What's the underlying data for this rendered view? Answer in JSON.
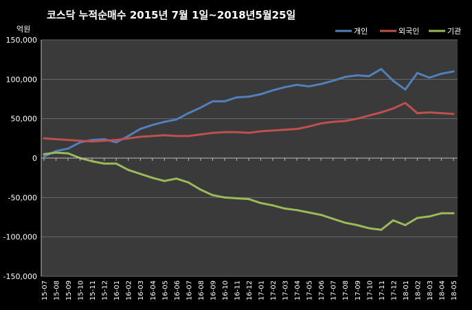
{
  "chart_data": {
    "type": "line",
    "title": "코스닥  누적순매수 2015년 7월 1일~2018년5월25일",
    "ylabel": "억원",
    "xlabel": "",
    "ylim": [
      -150000,
      150000
    ],
    "yticks": [
      150000,
      100000,
      50000,
      0,
      -50000,
      -100000,
      -150000
    ],
    "ytick_labels": [
      "150,000",
      "100,000",
      "50,000",
      "0",
      "-50,000",
      "-100,000",
      "-150,000"
    ],
    "grid": "horizontal",
    "legend_position": "top-right",
    "background": "#000000",
    "plot_background": "#3a3a3a",
    "categories": [
      "15-07",
      "15-08",
      "15-09",
      "15-10",
      "15-11",
      "15-12",
      "16-01",
      "16-02",
      "16-03",
      "16-04",
      "16-05",
      "16-06",
      "16-07",
      "16-08",
      "16-09",
      "16-10",
      "16-11",
      "16-12",
      "17-01",
      "17-02",
      "17-03",
      "17-04",
      "17-05",
      "17-06",
      "17-07",
      "17-08",
      "17-09",
      "17-10",
      "17-11",
      "17-12",
      "18-01",
      "18-02",
      "18-03",
      "18-04",
      "18-05"
    ],
    "series": [
      {
        "name": "개인",
        "color": "#4f81bd",
        "values": [
          2000,
          9000,
          12000,
          20000,
          23000,
          24000,
          20000,
          28000,
          37000,
          42000,
          46000,
          49000,
          57000,
          64000,
          72000,
          72000,
          77000,
          78000,
          81000,
          86000,
          90000,
          93000,
          91000,
          94000,
          98000,
          103000,
          105000,
          104000,
          113000,
          98000,
          87000,
          108000,
          102000,
          107000,
          110000
        ]
      },
      {
        "name": "외국인",
        "color": "#c0504d",
        "values": [
          25000,
          24000,
          23000,
          22000,
          21000,
          22000,
          23000,
          25000,
          27000,
          28000,
          29000,
          28000,
          28000,
          30000,
          32000,
          33000,
          33000,
          32000,
          34000,
          35000,
          36000,
          37000,
          40000,
          44000,
          46000,
          47000,
          50000,
          54000,
          58000,
          63000,
          70000,
          57000,
          58000,
          57000,
          56000
        ]
      },
      {
        "name": "기관",
        "color": "#9bbb59",
        "values": [
          5000,
          7000,
          6000,
          0,
          -4000,
          -7000,
          -7000,
          -15000,
          -20000,
          -25000,
          -29000,
          -26000,
          -31000,
          -40000,
          -47000,
          -50000,
          -51000,
          -52000,
          -57000,
          -60000,
          -64000,
          -66000,
          -69000,
          -72000,
          -77000,
          -82000,
          -85000,
          -89000,
          -91000,
          -79000,
          -85000,
          -76000,
          -74000,
          -70000,
          -70000
        ]
      }
    ]
  }
}
